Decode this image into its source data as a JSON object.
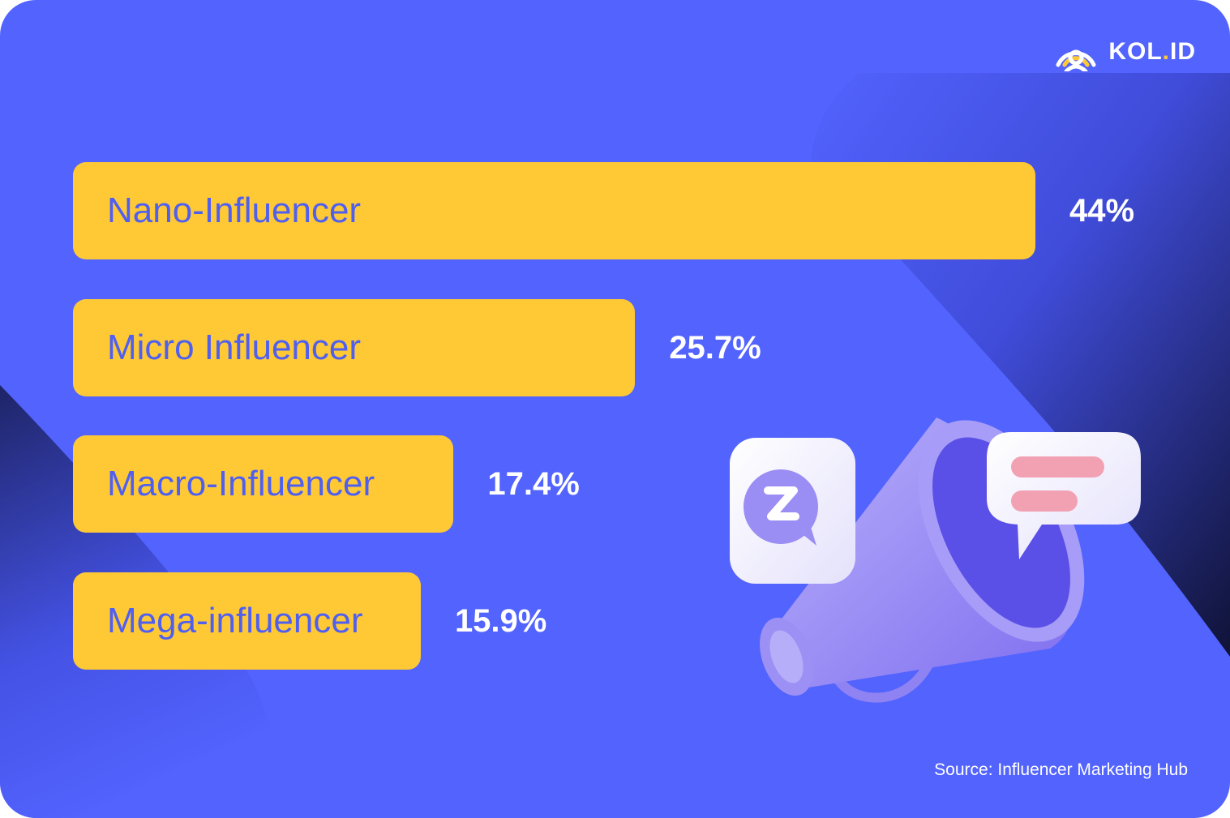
{
  "brand": {
    "name_main": "KOL",
    "name_dot": ".",
    "name_suffix": "ID",
    "logo_icon": "signal-person-icon",
    "accent": "#FFC935"
  },
  "colors": {
    "background": "#5263FE",
    "bar": "#FFC935",
    "label": "#4F5FF0",
    "value": "#FFFFFF"
  },
  "chart_data": {
    "type": "bar",
    "orientation": "horizontal",
    "categories": [
      "Nano-Influencer",
      "Micro Influencer",
      "Macro-Influencer",
      "Mega-influencer"
    ],
    "values": [
      44,
      25.7,
      17.4,
      15.9
    ],
    "value_labels": [
      "44%",
      "25.7%",
      "17.4%",
      "15.9%"
    ],
    "unit": "%",
    "title": "",
    "xlabel": "",
    "ylabel": "",
    "grid": false
  },
  "source": "Source: Influencer Marketing Hub",
  "illustration": "megaphone-icon"
}
